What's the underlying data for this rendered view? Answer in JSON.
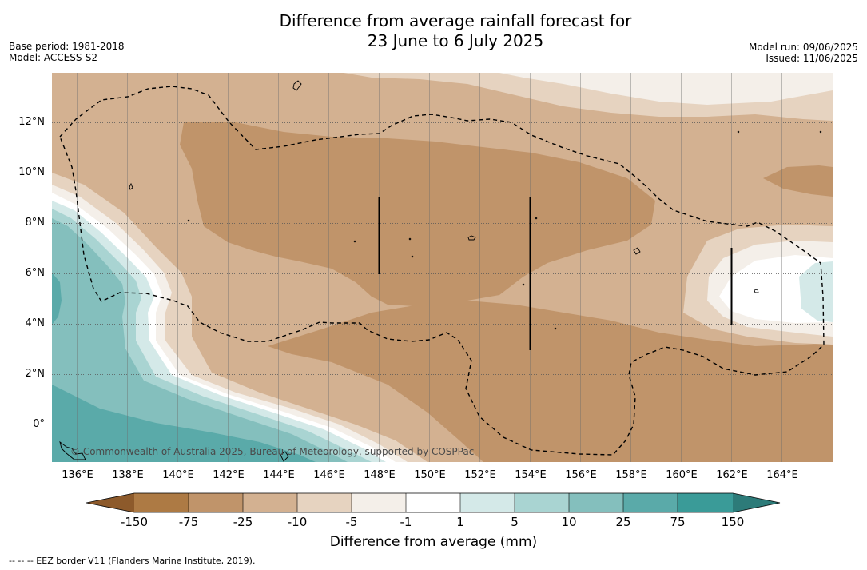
{
  "header": {
    "title_line1": "Difference from average rainfall forecast for",
    "title_line2": "23 June to 6 July 2025",
    "base_period": "Base period: 1981-2018",
    "model": "Model: ACCESS-S2",
    "model_run": "Model run: 09/06/2025",
    "issued": "Issued: 11/06/2025"
  },
  "map": {
    "lat_labels": [
      "12°N",
      "10°N",
      "8°N",
      "6°N",
      "4°N",
      "2°N",
      "0°"
    ],
    "lon_labels": [
      "136°E",
      "138°E",
      "140°E",
      "142°E",
      "144°E",
      "146°E",
      "148°E",
      "150°E",
      "152°E",
      "154°E",
      "156°E",
      "158°E",
      "160°E",
      "162°E",
      "164°E"
    ],
    "copyright": "© Commonwealth of Australia 2025, Bureau of Meteorology, supported by COSPPac"
  },
  "colorbar": {
    "labels": [
      "-150",
      "-75",
      "-25",
      "-10",
      "-5",
      "-1",
      "1",
      "5",
      "10",
      "25",
      "75",
      "150"
    ],
    "colors": {
      "lt_-150": "#8d5a2b",
      "-150_-75": "#ad7a44",
      "-75_-25": "#c0946a",
      "-25_-10": "#d3b191",
      "-10_-5": "#e6d3c0",
      "-5_-1": "#f4efe9",
      "-1_1": "#ffffff",
      "1_5": "#d4e9e8",
      "5_10": "#a9d4d2",
      "10_25": "#84bfbd",
      "25_75": "#5aaaa9",
      "75_150": "#3a9b98",
      "gt_150": "#2d7b79"
    },
    "title": "Difference from average (mm)"
  },
  "footnote": "--  --  -- EEZ border V11 (Flanders Marine Institute, 2019)."
}
